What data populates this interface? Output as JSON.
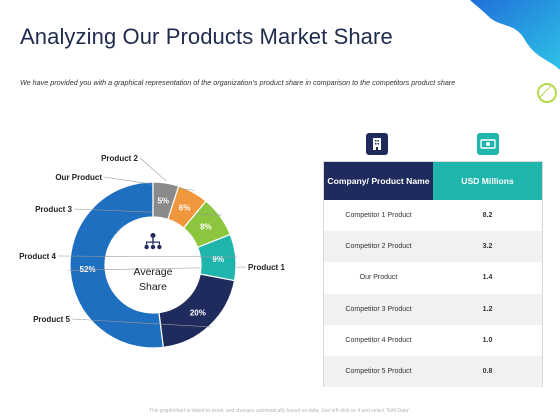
{
  "header": {
    "title": "Analyzing Our Products Market Share",
    "subtitle": "We have provided you with a graphical representation of the organization’s product share in comparison to the competitors product share"
  },
  "chart_data": {
    "type": "pie",
    "variant": "donut",
    "center_label": [
      "Average",
      "Share"
    ],
    "slices": [
      {
        "name": "Product 1",
        "value": 52,
        "label": "52%",
        "color": "#1f6fc0"
      },
      {
        "name": "Product 5",
        "value": 20,
        "label": "20%",
        "color": "#1f2b5c"
      },
      {
        "name": "Product 4",
        "value": 9,
        "label": "9%",
        "color": "#1fb5ac"
      },
      {
        "name": "Product 3",
        "value": 8,
        "label": "8%",
        "color": "#8cc63f"
      },
      {
        "name": "Our Product",
        "value": 6,
        "label": "6%",
        "color": "#f0963c"
      },
      {
        "name": "Product 2",
        "value": 5,
        "label": "5%",
        "color": "#8a8a8a"
      }
    ]
  },
  "table": {
    "headers": [
      "Company/ Product Name",
      "USD Millions"
    ],
    "rows": [
      {
        "name": "Competitor 1 Product",
        "value": "8.2"
      },
      {
        "name": "Competitor 2 Product",
        "value": "3.2"
      },
      {
        "name": "Our Product",
        "value": "1.4"
      },
      {
        "name": "Competitor 3 Product",
        "value": "1.2"
      },
      {
        "name": "Competitor 4 Product",
        "value": "1.0"
      },
      {
        "name": "Competitor 5 Product",
        "value": "0.8"
      }
    ]
  },
  "icons": {
    "company": "building-icon",
    "money": "money-icon",
    "center": "hierarchy-icon"
  },
  "footer": "This graph/chart is linked to excel, and changes automatically based on data. Just left click on it and select “Edit Data”."
}
